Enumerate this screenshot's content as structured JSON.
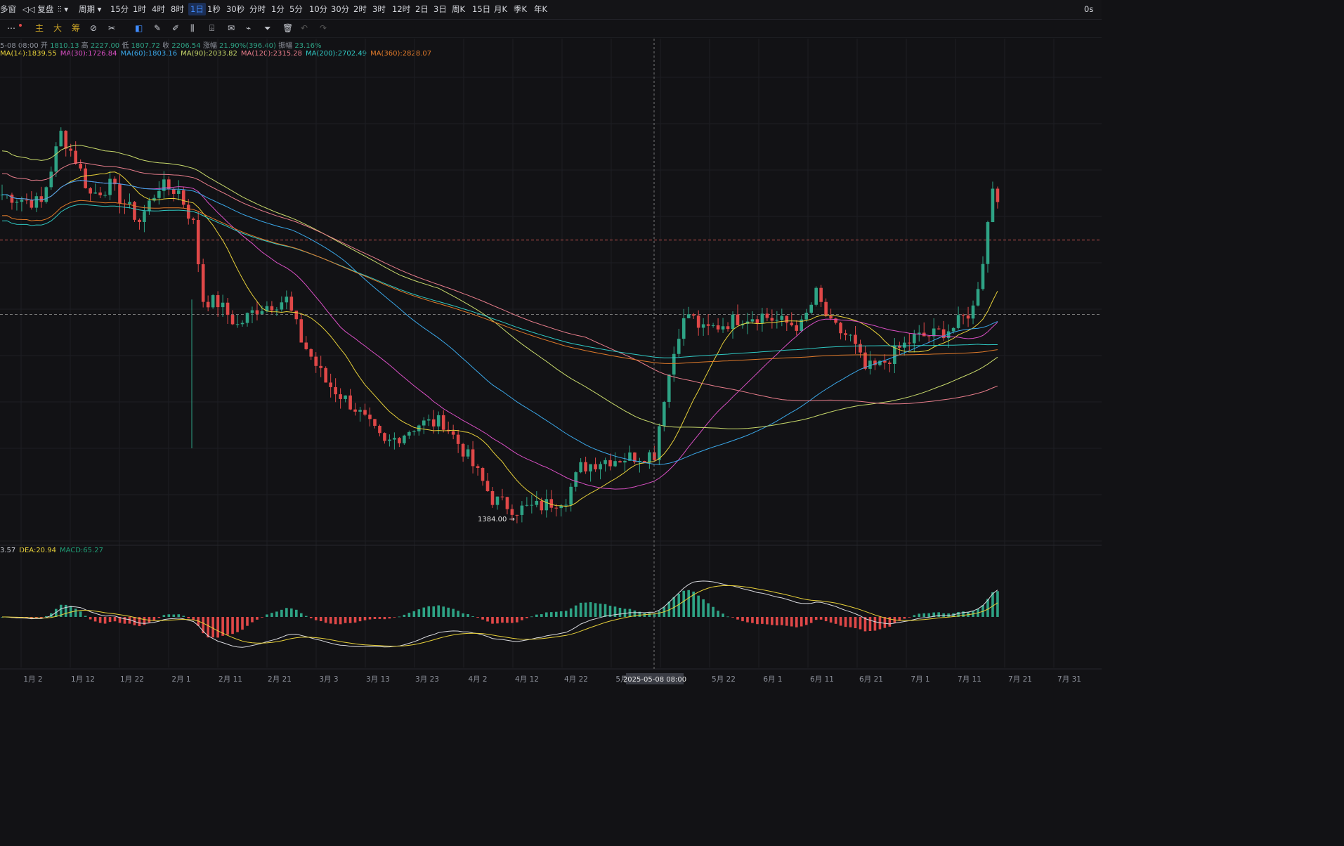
{
  "topbar": {
    "items": [
      {
        "label": "多窗",
        "icon": ""
      },
      {
        "label": "复盘",
        "icon": "rewind-icon"
      },
      {
        "label": "",
        "icon": "chart-type-icon"
      },
      {
        "label": "周期",
        "icon": "chevron-down-icon"
      },
      {
        "label": "15分"
      },
      {
        "label": "1时"
      },
      {
        "label": "4时"
      },
      {
        "label": "8时"
      },
      {
        "label": "1日",
        "active": true
      },
      {
        "label": "1秒"
      },
      {
        "label": "30秒"
      },
      {
        "label": "分时"
      },
      {
        "label": "1分"
      },
      {
        "label": "5分"
      },
      {
        "label": "10分"
      },
      {
        "label": "30分"
      },
      {
        "label": "2时"
      },
      {
        "label": "3时"
      },
      {
        "label": "12时"
      },
      {
        "label": "2日"
      },
      {
        "label": "3日"
      },
      {
        "label": "周K"
      },
      {
        "label": "15日"
      },
      {
        "label": "月K"
      },
      {
        "label": "季K"
      },
      {
        "label": "年K"
      }
    ],
    "right_label": "0s"
  },
  "toolbar2": {
    "text_items": [
      "主",
      "大",
      "筹"
    ],
    "icons": [
      "more-icon",
      "indicator-icon",
      "ruler-icon",
      "select-icon",
      "pencil-icon",
      "brush-icon",
      "measure-icon",
      "lock-icon",
      "note-icon",
      "magnet-icon",
      "filter-icon",
      "trash-icon",
      "undo-icon",
      "redo-icon"
    ]
  },
  "info_line": {
    "date": "5-08 08:00",
    "open_label": "开",
    "open": "1810.13",
    "high_label": "高",
    "high": "2227.00",
    "low_label": "低",
    "low": "1807.72",
    "close_label": "收",
    "close": "2206.54",
    "change_label": "涨幅",
    "change": "21.90%(396.40)",
    "amp_label": "振幅",
    "amp": "23.16%"
  },
  "ma_legend": [
    {
      "text": "MA(14):1839.55",
      "color": "#e8d13a"
    },
    {
      "text": "MA(30):1726.84",
      "color": "#d94fc4"
    },
    {
      "text": "MA(60):1803.16",
      "color": "#3aa7e8"
    },
    {
      "text": "MA(90):2033.82",
      "color": "#c8d96b"
    },
    {
      "text": "MA(120):2315.28",
      "color": "#e87d8b"
    },
    {
      "text": "MA(200):2702.49",
      "color": "#2fc9c4"
    },
    {
      "text": "MA(360):2828.07",
      "color": "#e07a2a"
    }
  ],
  "macd_legend": [
    {
      "text": "3.57",
      "color": "#c9ccd3"
    },
    {
      "text": "DEA:20.94",
      "color": "#e8d13a"
    },
    {
      "text": "MACD:65.27",
      "color": "#1f9f77"
    }
  ],
  "low_marker": "1384.00",
  "crosshair_label": "2025-05-08 08:00",
  "colors": {
    "up": "#2ea385",
    "down": "#e04848",
    "background": "#121215",
    "grid": "#1d1e23"
  },
  "chart_data": {
    "type": "candlestick",
    "x_ticks": [
      "1月 2",
      "1月 12",
      "1月 22",
      "2月 1",
      "2月 11",
      "2月 21",
      "3月 3",
      "3月 13",
      "3月 23",
      "4月 2",
      "4月 12",
      "4月 22",
      "5月",
      "5月 22",
      "6月 1",
      "6月 11",
      "6月 21",
      "7月 1",
      "7月 11",
      "7月 21",
      "7月 31"
    ],
    "price_range": [
      1300,
      4050
    ],
    "key_levels": [
      3040,
      2615
    ],
    "series_summary": {
      "start": "~3300 (Jan)",
      "peak": "~3700 (early Jan)",
      "low": 1384.0,
      "last": "~3100 (mid Jul)"
    },
    "moving_averages": [
      "MA(14)",
      "MA(30)",
      "MA(60)",
      "MA(90)",
      "MA(120)",
      "MA(200)",
      "MA(360)"
    ],
    "macd": {
      "DIF": 3.57,
      "DEA": 20.94,
      "MACD": 65.27
    }
  }
}
